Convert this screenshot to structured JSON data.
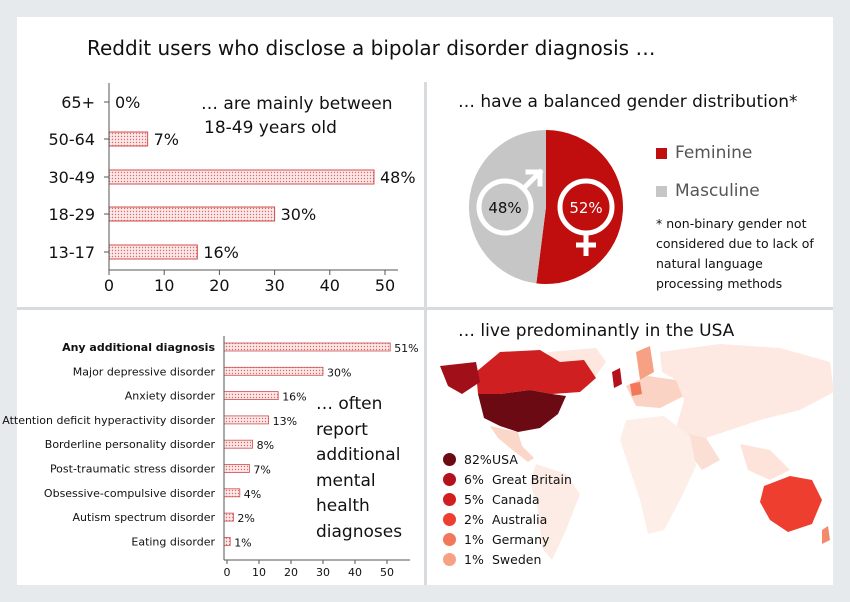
{
  "title": "Reddit users who disclose a bipolar disorder diagnosis …",
  "age": {
    "caption_line1": "… are mainly between",
    "caption_line2": "18-49 years old",
    "chart_data": {
      "type": "bar",
      "orientation": "horizontal",
      "categories": [
        "65+",
        "50-64",
        "30-49",
        "18-29",
        "13-17"
      ],
      "values": [
        0,
        7,
        48,
        30,
        16
      ],
      "value_labels": [
        "0%",
        "7%",
        "48%",
        "30%",
        "16%"
      ],
      "xlim": [
        0,
        50
      ],
      "xticks": [
        0,
        10,
        20,
        30,
        40,
        50
      ],
      "xtick_labels": [
        "0",
        "10",
        "20",
        "30",
        "40",
        "50"
      ],
      "bar_color": "#e8a5a5"
    }
  },
  "gender": {
    "caption": "… have a balanced gender distribution*",
    "chart_data": {
      "type": "pie",
      "slices": [
        {
          "name": "Feminine",
          "value": 52,
          "label": "52%",
          "color": "#c00d0d"
        },
        {
          "name": "Masculine",
          "value": 48,
          "label": "48%",
          "color": "#c6c6c6"
        }
      ]
    },
    "legend": [
      "Feminine",
      "Masculine"
    ],
    "note_lines": [
      "* non-binary gender not",
      "considered due to lack of",
      "natural language",
      "processing methods"
    ],
    "icons": [
      "male-symbol-icon",
      "female-symbol-icon"
    ]
  },
  "diagnoses": {
    "caption_lines": [
      "… often",
      "report",
      "additional",
      "mental",
      "health",
      "diagnoses"
    ],
    "chart_data": {
      "type": "bar",
      "orientation": "horizontal",
      "categories": [
        "Any additional diagnosis",
        "Major depressive disorder",
        "Anxiety disorder",
        "Attention deficit hyperactivity disorder",
        "Borderline personality disorder",
        "Post-traumatic stress disorder",
        "Obsessive-compulsive disorder",
        "Autism spectrum disorder",
        "Eating disorder"
      ],
      "values": [
        51,
        30,
        16,
        13,
        8,
        7,
        4,
        2,
        1
      ],
      "value_labels": [
        "51%",
        "30%",
        "16%",
        "13%",
        "8%",
        "7%",
        "4%",
        "2%",
        "1%"
      ],
      "xlim": [
        0,
        55
      ],
      "xticks": [
        0,
        10,
        20,
        30,
        40,
        50
      ],
      "xtick_labels": [
        "0",
        "10",
        "20",
        "30",
        "40",
        "50"
      ],
      "bold_first": true
    }
  },
  "country": {
    "caption": "… live predominantly in the USA",
    "chart_data": {
      "type": "map",
      "entries": [
        {
          "pct": "82%",
          "name": "USA",
          "value": 82,
          "color": "#6b0a12"
        },
        {
          "pct": "6%",
          "name": "Great Britain",
          "value": 6,
          "color": "#b3121c"
        },
        {
          "pct": "5%",
          "name": "Canada",
          "value": 5,
          "color": "#cf1f21"
        },
        {
          "pct": "2%",
          "name": "Australia",
          "value": 2,
          "color": "#ee3e30"
        },
        {
          "pct": "1%",
          "name": "Germany",
          "value": 1,
          "color": "#f3775a"
        },
        {
          "pct": "1%",
          "name": "Sweden",
          "value": 1,
          "color": "#f7a184"
        }
      ]
    }
  }
}
